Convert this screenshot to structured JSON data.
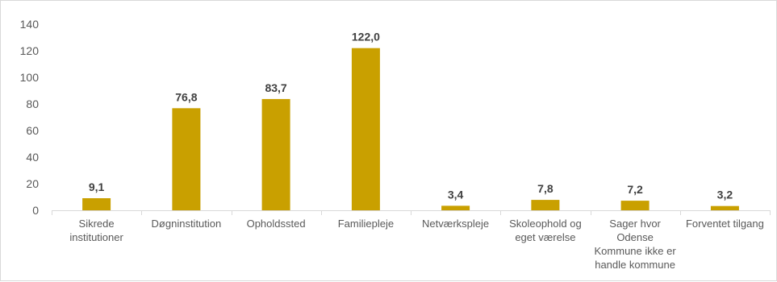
{
  "chart_data": {
    "type": "bar",
    "categories": [
      [
        "Sikrede",
        "institutioner"
      ],
      [
        "Døgninstitution"
      ],
      [
        "Opholdssted"
      ],
      [
        "Familiepleje"
      ],
      [
        "Netværkspleje"
      ],
      [
        "Skoleophold og",
        "eget værelse"
      ],
      [
        "Sager hvor",
        "Odense",
        "Kommune ikke er",
        "handle kommune"
      ],
      [
        "Forventet tilgang"
      ]
    ],
    "values": [
      9.1,
      76.8,
      83.7,
      122.0,
      3.4,
      7.8,
      7.2,
      3.2
    ],
    "data_labels": [
      "9,1",
      "76,8",
      "83,7",
      "122,0",
      "3,4",
      "7,8",
      "7,2",
      "3,2"
    ],
    "y_ticks": [
      0,
      20,
      40,
      60,
      80,
      100,
      120,
      140
    ],
    "ylim": [
      0,
      140
    ],
    "bar_color": "#C9A000",
    "grid": false,
    "legend": "none"
  }
}
